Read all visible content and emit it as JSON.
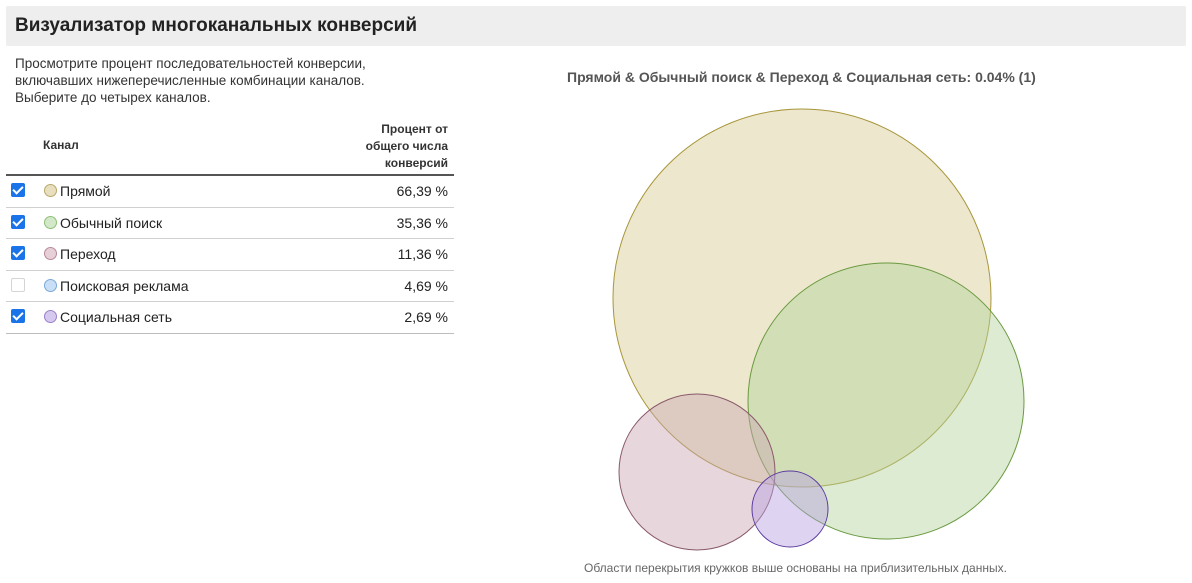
{
  "header": {
    "title": "Визуализатор многоканальных конверсий"
  },
  "intro": {
    "line1": "Просмотрите процент последовательностей конверсии,",
    "line2": "включавших нижеперечисленные комбинации каналов.",
    "line3": "Выберите до четырех каналов."
  },
  "table": {
    "col_channel": "Канал",
    "col_percent_1": "Процент от",
    "col_percent_2": "общего числа",
    "col_percent_3": "конверсий",
    "rows": [
      {
        "label": "Прямой",
        "value": "66,39 %",
        "checked": true,
        "color": "#e8dfbf",
        "stroke": "#b8a86a"
      },
      {
        "label": "Обычный поиск",
        "value": "35,36 %",
        "checked": true,
        "color": "#d3e8c8",
        "stroke": "#8fbf78"
      },
      {
        "label": "Переход",
        "value": "11,36 %",
        "checked": true,
        "color": "#e6cfd6",
        "stroke": "#b88a98"
      },
      {
        "label": "Поисковая реклама",
        "value": "4,69 %",
        "checked": false,
        "color": "#c9dff7",
        "stroke": "#7aa8d8"
      },
      {
        "label": "Социальная сеть",
        "value": "2,69 %",
        "checked": true,
        "color": "#d6c9ef",
        "stroke": "#9a80c8"
      }
    ]
  },
  "chart": {
    "title": "Прямой & Обычный поиск & Переход & Социальная сеть: 0.04% (1)",
    "footnote": "Области перекрытия кружков выше основаны на приблизительных данных."
  },
  "chart_data": {
    "type": "venn",
    "sets": [
      {
        "name": "Прямой",
        "value": 66.39,
        "fill": "#d8c990",
        "stroke": "#a8963a"
      },
      {
        "name": "Обычный поиск",
        "value": 35.36,
        "fill": "#b2d39c",
        "stroke": "#6a9a40"
      },
      {
        "name": "Переход",
        "value": 11.36,
        "fill": "#c9a6b3",
        "stroke": "#8a5a6a"
      },
      {
        "name": "Социальная сеть",
        "value": 2.69,
        "fill": "#b5a0e0",
        "stroke": "#5a3aa0"
      }
    ],
    "intersection_label": "Прямой & Обычный поиск & Переход & Социальная сеть: 0.04% (1)"
  }
}
